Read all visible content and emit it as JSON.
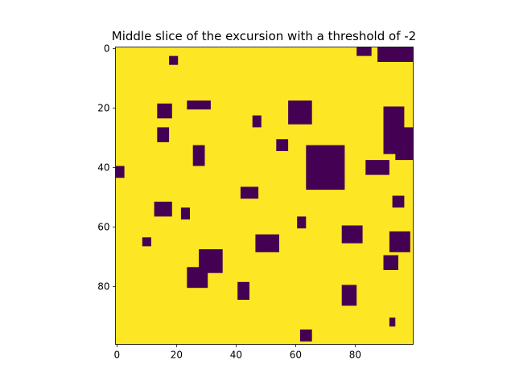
{
  "chart_data": {
    "type": "heatmap",
    "title": "Middle slice of the excursion with a threshold of -2",
    "background_color": "#fde725",
    "region_color": "#440154",
    "xlim": [
      -0.5,
      99.5
    ],
    "ylim": [
      99.5,
      -0.5
    ],
    "xticks": [
      0,
      20,
      40,
      60,
      80
    ],
    "yticks": [
      0,
      20,
      40,
      60,
      80
    ],
    "regions": [
      [
        88,
        99,
        0,
        4
      ],
      [
        81,
        85,
        0,
        2
      ],
      [
        18,
        20,
        3,
        5
      ],
      [
        24,
        31,
        18,
        20
      ],
      [
        14,
        18,
        19,
        23
      ],
      [
        46,
        48,
        23,
        26
      ],
      [
        58,
        65,
        18,
        25
      ],
      [
        90,
        96,
        20,
        35
      ],
      [
        94,
        99,
        27,
        37
      ],
      [
        14,
        17,
        27,
        31
      ],
      [
        54,
        57,
        31,
        34
      ],
      [
        26,
        29,
        33,
        39
      ],
      [
        0,
        2,
        40,
        43
      ],
      [
        64,
        76,
        33,
        47
      ],
      [
        84,
        91,
        38,
        42
      ],
      [
        42,
        47,
        47,
        50
      ],
      [
        93,
        96,
        50,
        53
      ],
      [
        13,
        18,
        52,
        56
      ],
      [
        22,
        24,
        54,
        57
      ],
      [
        61,
        63,
        57,
        60
      ],
      [
        76,
        82,
        60,
        65
      ],
      [
        47,
        54,
        63,
        68
      ],
      [
        9,
        11,
        64,
        66
      ],
      [
        92,
        98,
        62,
        68
      ],
      [
        28,
        35,
        68,
        75
      ],
      [
        24,
        30,
        74,
        80
      ],
      [
        90,
        94,
        70,
        74
      ],
      [
        41,
        44,
        79,
        84
      ],
      [
        76,
        80,
        80,
        86
      ],
      [
        92,
        93,
        91,
        93
      ],
      [
        62,
        65,
        95,
        98
      ]
    ]
  }
}
